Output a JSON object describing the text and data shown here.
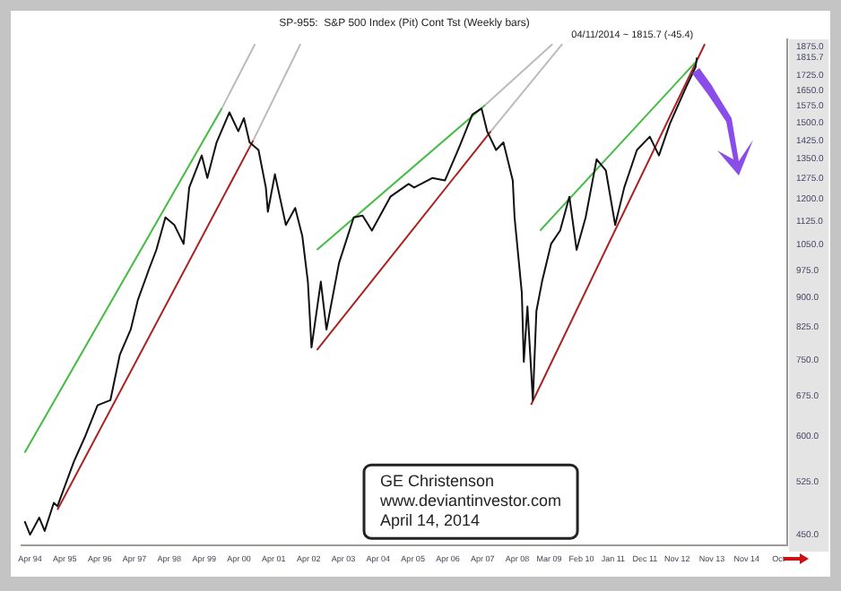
{
  "chart_data": {
    "type": "line",
    "title": "SP-955:  S&P 500 Index (Pit) Cont Tst (Weekly bars)",
    "annotations": [
      {
        "text": "04/11/2014 ~ 1815.7 (-45.4)",
        "x": "2013-05-28",
        "y": 1815.7
      },
      "GE Christenson",
      "www.deviantinvestor.com",
      "April 14, 2014"
    ],
    "log": "y",
    "grid": false,
    "legend": false,
    "marker": "none",
    "line_style": "solid",
    "xlim": [
      "1994-01",
      "2016-01"
    ],
    "ylim": [
      436,
      1915
    ],
    "xticks": [
      {
        "value": "1994-04",
        "label": "Apr 94"
      },
      {
        "value": "1995-04",
        "label": "Apr 95"
      },
      {
        "value": "1996-04",
        "label": "Apr 96"
      },
      {
        "value": "1997-04",
        "label": "Apr 97"
      },
      {
        "value": "1998-04",
        "label": "Apr 98"
      },
      {
        "value": "1999-04",
        "label": "Apr 99"
      },
      {
        "value": "2000-04",
        "label": "Apr 00"
      },
      {
        "value": "2001-04",
        "label": "Apr 01"
      },
      {
        "value": "2002-04",
        "label": "Apr 02"
      },
      {
        "value": "2003-04",
        "label": "Apr 03"
      },
      {
        "value": "2004-04",
        "label": "Apr 04"
      },
      {
        "value": "2005-04",
        "label": "Apr 05"
      },
      {
        "value": "2006-04",
        "label": "Apr 06"
      },
      {
        "value": "2007-04",
        "label": "Apr 07"
      },
      {
        "value": "2008-04",
        "label": "Apr 08"
      },
      {
        "value": "2009-03",
        "label": "Mar 09"
      },
      {
        "value": "2010-02",
        "label": "Feb 10"
      },
      {
        "value": "2011-01",
        "label": "Jan 11"
      },
      {
        "value": "2011-12",
        "label": "Dec 11"
      },
      {
        "value": "2012-11",
        "label": "Nov 12"
      },
      {
        "value": "2013-11",
        "label": "Nov 13"
      },
      {
        "value": "2014-11",
        "label": "Nov 14"
      },
      {
        "value": "2015-10",
        "label": "Oct"
      }
    ],
    "yticks": [
      {
        "value": 450,
        "label": "450.0"
      },
      {
        "value": 525,
        "label": "525.0"
      },
      {
        "value": 600,
        "label": "600.0"
      },
      {
        "value": 675,
        "label": "675.0"
      },
      {
        "value": 750,
        "label": "750.0"
      },
      {
        "value": 825,
        "label": "825.0"
      },
      {
        "value": 900,
        "label": "900.0"
      },
      {
        "value": 975,
        "label": "975.0"
      },
      {
        "value": 1050,
        "label": "1050.0"
      },
      {
        "value": 1125,
        "label": "1125.0"
      },
      {
        "value": 1200,
        "label": "1200.0"
      },
      {
        "value": 1275,
        "label": "1275.0"
      },
      {
        "value": 1350,
        "label": "1350.0"
      },
      {
        "value": 1425,
        "label": "1425.0"
      },
      {
        "value": 1500,
        "label": "1500.0"
      },
      {
        "value": 1575,
        "label": "1575.0"
      },
      {
        "value": 1650,
        "label": "1650.0"
      },
      {
        "value": 1725,
        "label": "1725.0"
      },
      {
        "value": 1815.7,
        "label": "1815.7"
      },
      {
        "value": 1875,
        "label": "1875.0"
      }
    ],
    "series": [
      {
        "color": "#111111",
        "x": [
          "1994-02-03",
          "1994-04-01",
          "1994-07-06",
          "1994-09-01",
          "1994-12-06",
          "1995-01-13",
          "1995-07-04",
          "1995-10-26",
          "1996-03-09",
          "1996-07-22",
          "1996-10-28",
          "1997-02-20",
          "1997-05-05",
          "1997-09-01",
          "1997-11-16",
          "1998-02-19",
          "1998-05-24",
          "1998-08-29",
          "1998-10-27",
          "1999-03-07",
          "1999-05-05",
          "1999-08-10",
          "1999-12-23",
          "2000-03-25",
          "2000-05-23",
          "2000-07-21",
          "2000-10-23",
          "2001-01-08",
          "2001-01-29",
          "2001-04-13",
          "2001-08-06",
          "2001-11-12",
          "2002-01-26",
          "2002-03-25",
          "2002-05-02",
          "2002-08-08",
          "2002-10-06",
          "2003-02-15",
          "2003-07-19",
          "2003-10-20",
          "2004-01-26",
          "2004-08-07",
          "2005-02-14",
          "2005-04-13",
          "2005-10-20",
          "2006-03-03",
          "2006-08-03",
          "2006-12-16",
          "2007-03-21",
          "2007-05-19",
          "2007-08-21",
          "2007-11-06",
          "2008-02-12",
          "2008-03-02",
          "2008-05-17",
          "2008-06-07",
          "2008-07-15",
          "2008-09-10",
          "2008-10-17",
          "2008-12-15",
          "2009-03-20",
          "2009-06-23",
          "2009-09-28",
          "2009-12-13",
          "2010-03-18",
          "2010-07-11",
          "2010-10-16",
          "2011-01-22",
          "2011-04-27",
          "2011-09-07",
          "2012-01-20",
          "2012-04-25",
          "2012-08-18",
          "2013-02-08",
          "2013-05-14",
          "2013-05-28"
        ],
        "values": [
          468,
          450,
          473,
          455,
          494,
          489,
          557,
          598,
          657,
          667,
          761,
          820,
          893,
          979,
          1035,
          1138,
          1113,
          1053,
          1242,
          1364,
          1277,
          1417,
          1547,
          1464,
          1521,
          1417,
          1386,
          1242,
          1157,
          1291,
          1113,
          1170,
          1077,
          943,
          778,
          943,
          820,
          996,
          1138,
          1144,
          1095,
          1209,
          1255,
          1242,
          1277,
          1268,
          1401,
          1538,
          1565,
          1464,
          1386,
          1417,
          1268,
          1138,
          913,
          746,
          877,
          667,
          865,
          943,
          1053,
          1095,
          1209,
          1035,
          1138,
          1349,
          1305,
          1113,
          1242,
          1386,
          1441,
          1364,
          1497,
          1670,
          1765,
          1815.7
        ]
      },
      {
        "type": "line",
        "color": "#44bb44",
        "x": [
          "1994-02-03",
          "1999-10-05"
        ],
        "values": [
          572,
          1566
        ]
      },
      {
        "type": "line",
        "color": "#bbbbbb",
        "x": [
          "1999-10-05",
          "2000-09-16"
        ],
        "values": [
          1566,
          1889
        ]
      },
      {
        "type": "line",
        "color": "#aa2222",
        "x": [
          "1995-01-13",
          "2000-08-28"
        ],
        "values": [
          484,
          1425
        ]
      },
      {
        "type": "line",
        "color": "#bbbbbb",
        "x": [
          "2000-08-28",
          "2002-01-06"
        ],
        "values": [
          1425,
          1889
        ]
      },
      {
        "type": "line",
        "color": "#44bb44",
        "x": [
          "2002-06-28",
          "2007-04-29"
        ],
        "values": [
          1035,
          1581
        ]
      },
      {
        "type": "line",
        "color": "#bbbbbb",
        "x": [
          "2007-04-29",
          "2009-04-04"
        ],
        "values": [
          1581,
          1889
        ]
      },
      {
        "type": "line",
        "color": "#aa2222",
        "x": [
          "2002-06-28",
          "2007-06-27"
        ],
        "values": [
          772,
          1464
        ]
      },
      {
        "type": "line",
        "color": "#bbbbbb",
        "x": [
          "2007-06-27",
          "2009-07-16"
        ],
        "values": [
          1464,
          1889
        ]
      },
      {
        "type": "line",
        "color": "#44bb44",
        "x": [
          "2008-11-25",
          "2013-05-14"
        ],
        "values": [
          1095,
          1792
        ]
      },
      {
        "type": "line",
        "color": "#aa2222",
        "x": [
          "2008-08-22",
          "2013-08-19"
        ],
        "values": [
          658,
          1889
        ]
      }
    ]
  }
}
